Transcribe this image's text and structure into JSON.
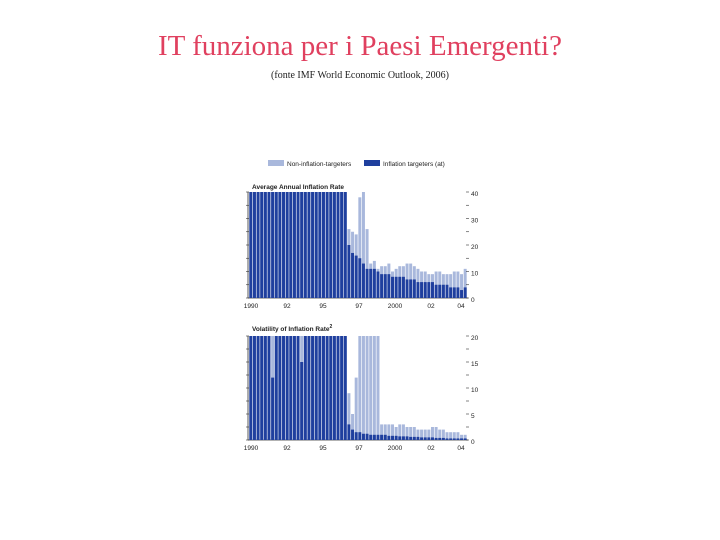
{
  "slide": {
    "title": "IT funziona per i Paesi Emergenti?",
    "source": "(fonte IMF World Economic Outlook, 2006)"
  },
  "colors": {
    "non_targeters": "#a9b8dc",
    "targeters": "#1f3f9e",
    "title": "#e0405f"
  },
  "chart_data": [
    {
      "type": "bar",
      "title": "Average Annual Inflation Rate",
      "legend": [
        "Non-inflation-targeters",
        "Inflation targeters (at)"
      ],
      "legend_placement": "top",
      "xlabel": "",
      "ylabel": "",
      "x_tick_labels": [
        "1990",
        "92",
        "95",
        "97",
        "2000",
        "02",
        "04"
      ],
      "y_tick_labels": [
        "0",
        "10",
        "20",
        "30",
        "40"
      ],
      "ylim": [
        0,
        40
      ],
      "x_range": [
        1990,
        2005
      ],
      "grid": false,
      "x": [
        1990.0,
        1990.25,
        1990.5,
        1990.75,
        1991.0,
        1991.25,
        1991.5,
        1991.75,
        1992.0,
        1992.25,
        1992.5,
        1992.75,
        1993.0,
        1993.25,
        1993.5,
        1993.75,
        1994.0,
        1994.25,
        1994.5,
        1994.75,
        1995.0,
        1995.25,
        1995.5,
        1995.75,
        1996.0,
        1996.25,
        1996.5,
        1996.75,
        1997.0,
        1997.25,
        1997.5,
        1997.75,
        1998.0,
        1998.25,
        1998.5,
        1998.75,
        1999.0,
        1999.25,
        1999.5,
        1999.75,
        2000.0,
        2000.25,
        2000.5,
        2000.75,
        2001.0,
        2001.25,
        2001.5,
        2001.75,
        2002.0,
        2002.25,
        2002.5,
        2002.75,
        2003.0,
        2003.25,
        2003.5,
        2003.75,
        2004.0,
        2004.25,
        2004.5,
        2004.75
      ],
      "series": [
        {
          "name": "Non-inflation-targeters",
          "values": [
            40,
            40,
            40,
            40,
            40,
            40,
            40,
            40,
            40,
            40,
            40,
            40,
            40,
            40,
            40,
            40,
            40,
            40,
            40,
            40,
            40,
            40,
            40,
            40,
            40,
            40,
            40,
            26,
            25,
            24,
            38,
            40,
            26,
            13,
            14,
            11,
            12,
            12,
            13,
            10,
            11,
            12,
            12,
            13,
            13,
            12,
            11,
            10,
            10,
            9,
            9,
            10,
            10,
            9,
            9,
            9,
            10,
            10,
            9,
            11
          ]
        },
        {
          "name": "Inflation targeters (at)",
          "values": [
            40,
            40,
            40,
            40,
            40,
            40,
            40,
            40,
            40,
            40,
            40,
            40,
            40,
            40,
            40,
            40,
            40,
            40,
            40,
            40,
            40,
            40,
            40,
            40,
            40,
            40,
            40,
            20,
            17,
            16,
            15,
            13,
            11,
            11,
            11,
            10,
            9,
            9,
            9,
            8,
            8,
            8,
            8,
            7,
            7,
            7,
            6,
            6,
            6,
            6,
            6,
            5,
            5,
            5,
            5,
            4,
            4,
            4,
            3,
            4
          ]
        }
      ]
    },
    {
      "type": "bar",
      "title": "Volatility of Inflation Rate",
      "title_superscript": "2",
      "xlabel": "",
      "ylabel": "",
      "x_tick_labels": [
        "1990",
        "92",
        "95",
        "97",
        "2000",
        "02",
        "04"
      ],
      "y_tick_labels": [
        "0",
        "5",
        "10",
        "15",
        "20"
      ],
      "ylim": [
        0,
        20
      ],
      "x_range": [
        1990,
        2005
      ],
      "grid": false,
      "x": [
        1990.0,
        1990.25,
        1990.5,
        1990.75,
        1991.0,
        1991.25,
        1991.5,
        1991.75,
        1992.0,
        1992.25,
        1992.5,
        1992.75,
        1993.0,
        1993.25,
        1993.5,
        1993.75,
        1994.0,
        1994.25,
        1994.5,
        1994.75,
        1995.0,
        1995.25,
        1995.5,
        1995.75,
        1996.0,
        1996.25,
        1996.5,
        1996.75,
        1997.0,
        1997.25,
        1997.5,
        1997.75,
        1998.0,
        1998.25,
        1998.5,
        1998.75,
        1999.0,
        1999.25,
        1999.5,
        1999.75,
        2000.0,
        2000.25,
        2000.5,
        2000.75,
        2001.0,
        2001.25,
        2001.5,
        2001.75,
        2002.0,
        2002.25,
        2002.5,
        2002.75,
        2003.0,
        2003.25,
        2003.5,
        2003.75,
        2004.0,
        2004.25,
        2004.5,
        2004.75
      ],
      "series": [
        {
          "name": "Non-inflation-targeters",
          "values": [
            20,
            20,
            20,
            20,
            20,
            20,
            20,
            20,
            20,
            20,
            20,
            20,
            20,
            20,
            20,
            20,
            20,
            20,
            20,
            20,
            20,
            20,
            20,
            20,
            20,
            20,
            20,
            9,
            5,
            12,
            20,
            20,
            20,
            20,
            20,
            20,
            3,
            3,
            3,
            3,
            2.5,
            3,
            3,
            2.5,
            2.5,
            2.5,
            2,
            2,
            2,
            2,
            2.5,
            2.5,
            2,
            2,
            1.5,
            1.5,
            1.5,
            1.5,
            1,
            1
          ]
        },
        {
          "name": "Inflation targeters (at)",
          "values": [
            20,
            20,
            20,
            20,
            20,
            20,
            12,
            20,
            20,
            20,
            20,
            20,
            20,
            20,
            15,
            20,
            20,
            20,
            20,
            20,
            20,
            20,
            20,
            20,
            20,
            20,
            20,
            3,
            2,
            1.5,
            1.5,
            1.2,
            1.2,
            1,
            1,
            1,
            1,
            1,
            0.8,
            0.8,
            0.8,
            0.7,
            0.7,
            0.7,
            0.6,
            0.6,
            0.6,
            0.5,
            0.5,
            0.5,
            0.5,
            0.4,
            0.4,
            0.4,
            0.3,
            0.3,
            0.3,
            0.3,
            0.3,
            0.3
          ]
        }
      ]
    }
  ]
}
